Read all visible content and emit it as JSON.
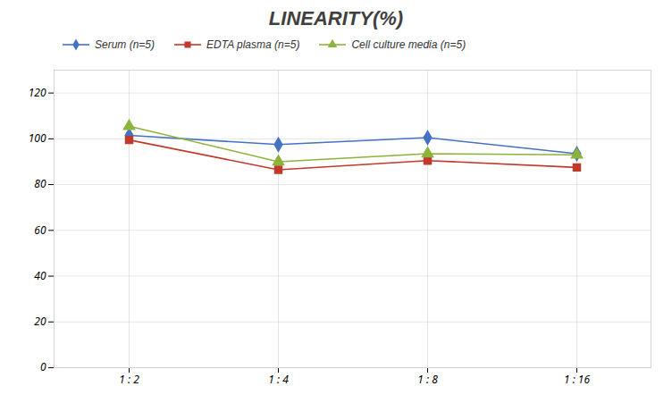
{
  "chart_data": {
    "type": "line",
    "title": "LINEARITY(%)",
    "categories": [
      "1 : 2",
      "1 : 4",
      "1 : 8",
      "1 : 16"
    ],
    "series": [
      {
        "name": "Serum (n=5)",
        "color": "#4472C4",
        "marker": "diamond",
        "values": [
          101.5,
          97.5,
          100.5,
          93.5
        ]
      },
      {
        "name": "EDTA plasma (n=5)",
        "color": "#C0392B",
        "marker": "square",
        "values": [
          99.5,
          86.5,
          90.5,
          87.5
        ]
      },
      {
        "name": "Cell culture media (n=5)",
        "color": "#8DB33A",
        "marker": "triangle",
        "values": [
          105.5,
          90.0,
          93.5,
          93.0
        ]
      }
    ],
    "ylim": [
      0,
      130
    ],
    "yticks": [
      0,
      20,
      40,
      60,
      80,
      100,
      120
    ],
    "grid": true,
    "legend": "top"
  }
}
